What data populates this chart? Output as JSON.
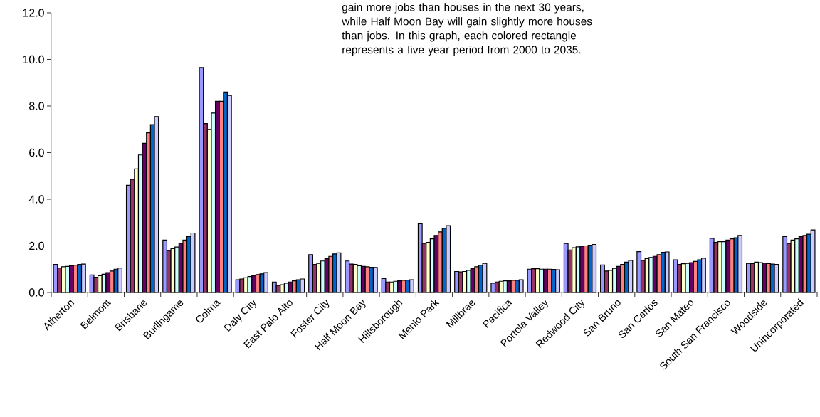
{
  "chart_data": {
    "type": "bar",
    "annotations": [
      "gain more jobs than houses in the next 30 years, while Half Moon Bay will gain slightly more houses than jobs. In this graph, each colored rectangle represents a five year period from 2000 to 2035."
    ],
    "categories": [
      "Atherton",
      "Belmont",
      "Brisbane",
      "Burlingame",
      "Colma",
      "Daly City",
      "East Palo Alto",
      "Foster City",
      "Half Moon Bay",
      "Hillsborough",
      "Menlo Park",
      "Millbrae",
      "Pacifica",
      "Portola Valley",
      "Redwood City",
      "San Bruno",
      "San Carlos",
      "San Mateo",
      "South San Francisco",
      "Woodside",
      "Unincorporated"
    ],
    "series": [
      {
        "color": "#9999ff",
        "values": [
          1.2,
          0.75,
          4.6,
          2.25,
          9.65,
          0.55,
          0.45,
          1.62,
          1.35,
          0.6,
          2.95,
          0.9,
          0.4,
          1.0,
          2.1,
          1.18,
          1.75,
          1.4,
          2.32,
          1.25,
          2.4
        ]
      },
      {
        "color": "#993366",
        "values": [
          1.05,
          0.65,
          4.85,
          1.8,
          7.25,
          0.58,
          0.3,
          1.2,
          1.22,
          0.45,
          2.1,
          0.88,
          0.45,
          1.02,
          1.82,
          0.92,
          1.38,
          1.2,
          2.15,
          1.24,
          2.1
        ]
      },
      {
        "color": "#ffffcc",
        "values": [
          1.1,
          0.72,
          5.3,
          1.88,
          7.0,
          0.63,
          0.33,
          1.25,
          1.2,
          0.45,
          2.15,
          0.9,
          0.48,
          1.02,
          1.92,
          0.95,
          1.45,
          1.23,
          2.18,
          1.3,
          2.25
        ]
      },
      {
        "color": "#ccffff",
        "values": [
          1.12,
          0.78,
          5.9,
          1.95,
          7.7,
          0.68,
          0.4,
          1.35,
          1.15,
          0.48,
          2.3,
          0.95,
          0.5,
          1.0,
          1.96,
          1.03,
          1.5,
          1.25,
          2.18,
          1.28,
          2.3
        ]
      },
      {
        "color": "#660066",
        "values": [
          1.15,
          0.85,
          6.4,
          2.1,
          8.2,
          0.72,
          0.45,
          1.45,
          1.12,
          0.5,
          2.45,
          1.02,
          0.5,
          1.0,
          1.98,
          1.12,
          1.55,
          1.28,
          2.25,
          1.26,
          2.4
        ]
      },
      {
        "color": "#ff8080",
        "values": [
          1.17,
          0.92,
          6.85,
          2.25,
          8.2,
          0.77,
          0.5,
          1.55,
          1.1,
          0.52,
          2.6,
          1.1,
          0.52,
          1.0,
          2.0,
          1.2,
          1.62,
          1.33,
          2.3,
          1.24,
          2.45
        ]
      },
      {
        "color": "#0066cc",
        "values": [
          1.2,
          1.0,
          7.2,
          2.4,
          8.6,
          0.8,
          0.55,
          1.65,
          1.08,
          0.53,
          2.75,
          1.17,
          0.52,
          0.99,
          2.03,
          1.3,
          1.72,
          1.4,
          2.35,
          1.22,
          2.5
        ]
      },
      {
        "color": "#ccccff",
        "values": [
          1.22,
          1.05,
          7.55,
          2.55,
          8.45,
          0.85,
          0.58,
          1.7,
          1.07,
          0.55,
          2.87,
          1.25,
          0.55,
          0.97,
          2.06,
          1.38,
          1.74,
          1.47,
          2.45,
          1.2,
          2.68
        ]
      }
    ],
    "ylim": [
      0,
      12
    ],
    "yticks": [
      {
        "value": 0,
        "label": "0.0"
      },
      {
        "value": 2,
        "label": "2.0"
      },
      {
        "value": 4,
        "label": "4.0"
      },
      {
        "value": 6,
        "label": "6.0"
      },
      {
        "value": 8,
        "label": "8.0"
      },
      {
        "value": 10,
        "label": "10.0"
      },
      {
        "value": 12,
        "label": "12.0"
      }
    ],
    "grid": false
  }
}
